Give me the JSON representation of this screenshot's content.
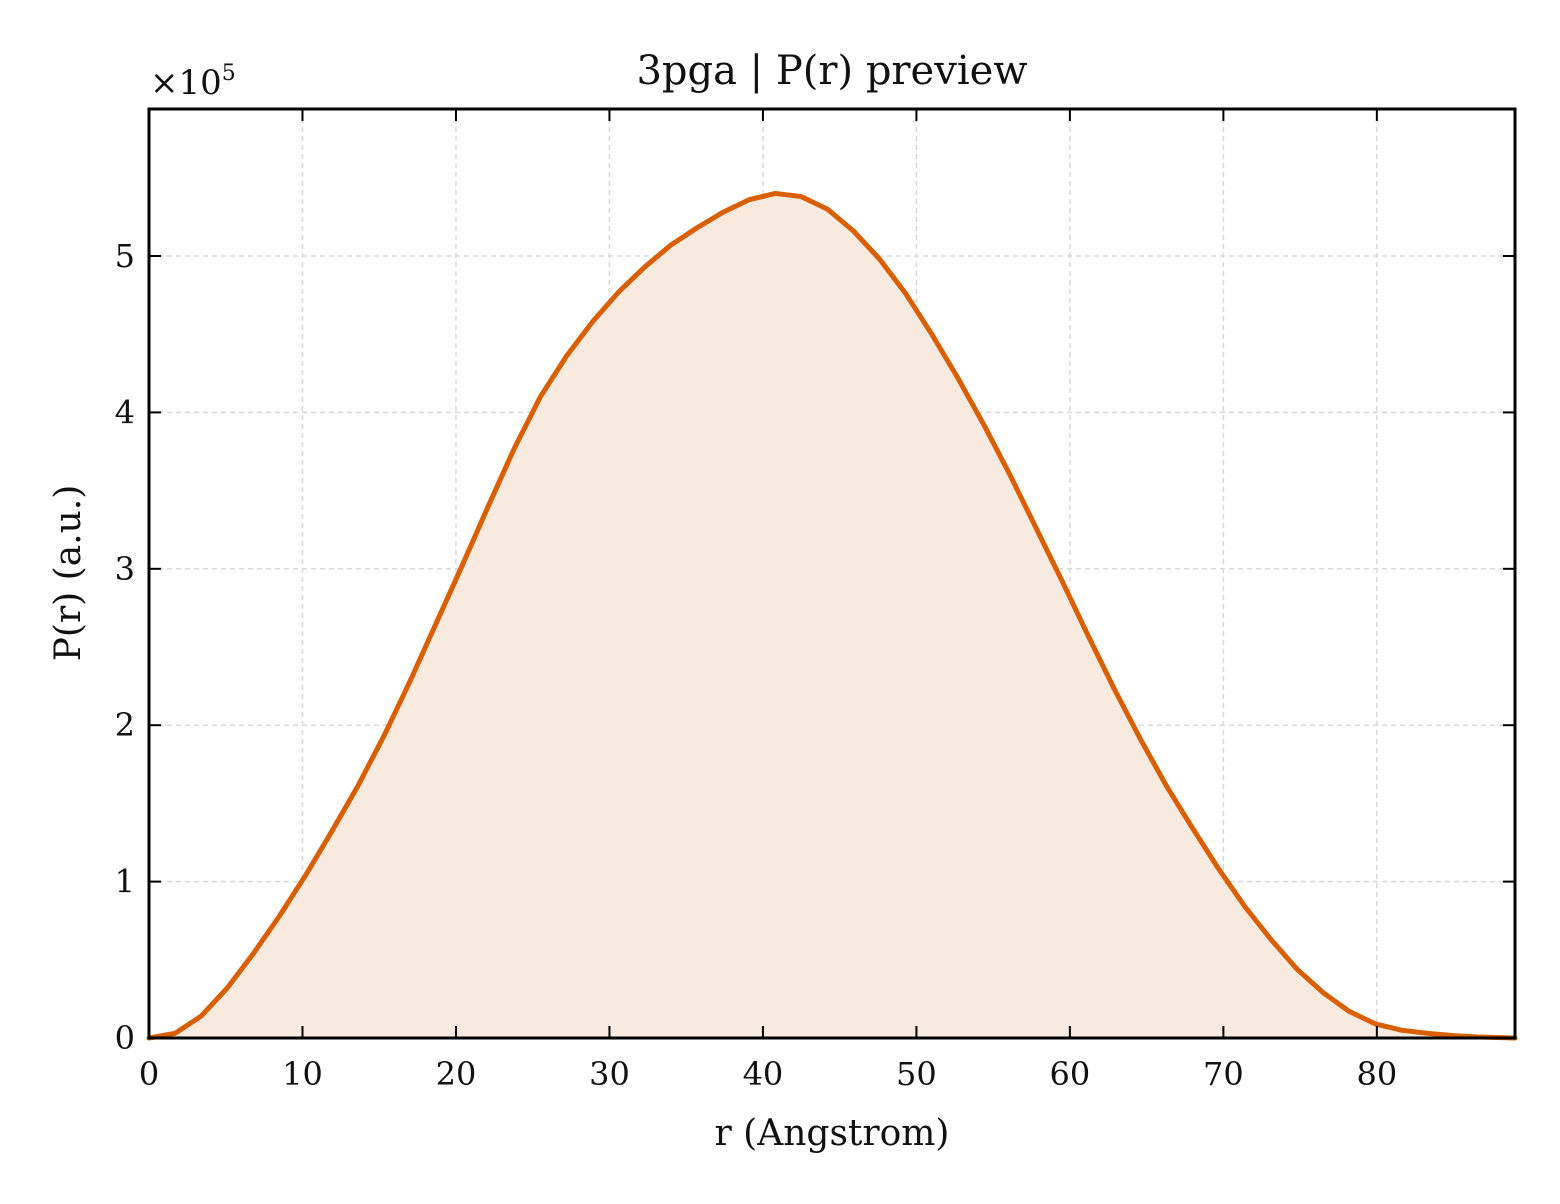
{
  "chart_data": {
    "type": "area",
    "title": "3pga | P(r) preview",
    "xlabel": "r (Angstrom)",
    "ylabel": "P(r) (a.u.)",
    "y_multiplier": {
      "base": "×10",
      "exponent": "5"
    },
    "xlim": [
      0,
      89
    ],
    "ylim": [
      0,
      5.94
    ],
    "x_ticks": [
      0,
      10,
      20,
      30,
      40,
      50,
      60,
      70,
      80
    ],
    "y_ticks": [
      0,
      1,
      2,
      3,
      4,
      5
    ],
    "x_tick_labels": [
      "0",
      "10",
      "20",
      "30",
      "40",
      "50",
      "60",
      "70",
      "80"
    ],
    "y_tick_labels": [
      "0",
      "1",
      "2",
      "3",
      "4",
      "5"
    ],
    "grid": true,
    "line_color": "#d95f02",
    "fill_color": "#f8eadf",
    "series": [
      {
        "x": [
          0,
          1.7,
          3.4,
          5.1,
          6.8,
          8.5,
          10.2,
          11.9,
          13.6,
          15.3,
          17.0,
          18.7,
          20.4,
          22.1,
          23.8,
          25.5,
          27.2,
          28.9,
          30.6,
          32.3,
          34.0,
          35.7,
          37.4,
          39.1,
          40.8,
          42.5,
          44.2,
          45.9,
          47.6,
          49.3,
          51.0,
          52.7,
          54.4,
          56.1,
          57.8,
          59.5,
          61.2,
          62.9,
          64.6,
          66.3,
          68.0,
          69.7,
          71.4,
          73.1,
          74.8,
          76.5,
          78.2,
          79.9,
          81.6,
          83.3,
          85.0,
          86.7,
          88.4,
          89.0
        ],
        "y": [
          0.0,
          0.03,
          0.14,
          0.32,
          0.54,
          0.78,
          1.04,
          1.32,
          1.61,
          1.93,
          2.28,
          2.65,
          3.02,
          3.4,
          3.77,
          4.1,
          4.36,
          4.58,
          4.77,
          4.93,
          5.07,
          5.18,
          5.28,
          5.36,
          5.4,
          5.38,
          5.3,
          5.16,
          4.98,
          4.76,
          4.5,
          4.22,
          3.92,
          3.6,
          3.26,
          2.92,
          2.57,
          2.23,
          1.91,
          1.61,
          1.34,
          1.08,
          0.84,
          0.63,
          0.44,
          0.29,
          0.17,
          0.09,
          0.05,
          0.03,
          0.015,
          0.006,
          0.002,
          0.0
        ]
      }
    ]
  }
}
